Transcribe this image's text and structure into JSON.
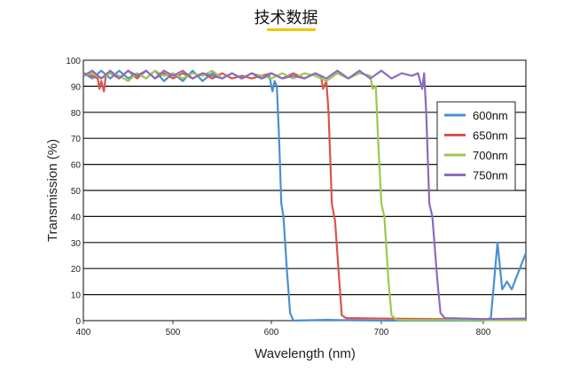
{
  "page_title": "技术数据",
  "colors": {
    "accent": "#f5c400"
  },
  "chart_data": {
    "type": "line",
    "title": "",
    "xlabel": "Wavelength (nm)",
    "ylabel": "Transmission (%)",
    "xlim": [
      400,
      845
    ],
    "ylim": [
      0,
      100
    ],
    "xticks": [
      400,
      500,
      600,
      700,
      800
    ],
    "yticks": [
      0,
      10,
      20,
      30,
      40,
      50,
      60,
      70,
      80,
      90,
      100
    ],
    "grid": true,
    "legend_position": "right",
    "series": [
      {
        "name": "600nm",
        "color": "#4a90d0",
        "x": [
          400,
          410,
          420,
          430,
          440,
          450,
          460,
          470,
          480,
          490,
          500,
          510,
          520,
          530,
          540,
          550,
          560,
          570,
          580,
          590,
          598,
          601,
          603,
          605,
          607,
          609,
          611,
          614,
          617,
          620,
          650,
          700,
          800,
          808,
          815,
          820,
          825,
          830,
          845
        ],
        "y": [
          95,
          93,
          96,
          93,
          96,
          93,
          95,
          93,
          96,
          92,
          95,
          92,
          96,
          92,
          95,
          93,
          95,
          93,
          95,
          93,
          94,
          88,
          92,
          90,
          70,
          45,
          40,
          20,
          3,
          0,
          0.3,
          0,
          0,
          1,
          30,
          12,
          15,
          12,
          26
        ]
      },
      {
        "name": "650nm",
        "color": "#d9534f",
        "x": [
          400,
          410,
          416,
          418,
          420,
          423,
          425,
          430,
          440,
          450,
          460,
          470,
          480,
          490,
          500,
          510,
          520,
          530,
          540,
          550,
          560,
          570,
          580,
          590,
          600,
          610,
          620,
          630,
          640,
          645,
          647,
          650,
          652,
          655,
          658,
          661,
          664,
          668,
          700,
          750,
          800,
          845
        ],
        "y": [
          95,
          94,
          93,
          89,
          92,
          88,
          94,
          95,
          93,
          96,
          93,
          96,
          93,
          95,
          93,
          95,
          93,
          95,
          93,
          95,
          93,
          94,
          93,
          94,
          95,
          93,
          95,
          93,
          95,
          94,
          89,
          92,
          80,
          45,
          38,
          20,
          2,
          1,
          0.8,
          0.6,
          0.5,
          0.5
        ]
      },
      {
        "name": "700nm",
        "color": "#9dc850",
        "x": [
          400,
          410,
          420,
          430,
          440,
          450,
          460,
          470,
          480,
          490,
          500,
          510,
          520,
          530,
          540,
          550,
          560,
          570,
          580,
          590,
          600,
          610,
          620,
          630,
          640,
          650,
          660,
          670,
          680,
          690,
          692,
          695,
          697,
          700,
          703,
          707,
          710,
          715,
          750,
          800,
          845
        ],
        "y": [
          94,
          95,
          93,
          95,
          94,
          92,
          95,
          93,
          96,
          94,
          95,
          93,
          95,
          94,
          96,
          93,
          95,
          93,
          95,
          94,
          93,
          95,
          93,
          95,
          94,
          92,
          95,
          93,
          95,
          94,
          89,
          90,
          70,
          45,
          40,
          15,
          2,
          0.3,
          0.2,
          0.2,
          0.2
        ]
      },
      {
        "name": "750nm",
        "color": "#8a6cbd",
        "x": [
          400,
          410,
          420,
          430,
          440,
          450,
          460,
          470,
          480,
          490,
          500,
          510,
          520,
          530,
          540,
          550,
          560,
          570,
          580,
          590,
          600,
          610,
          620,
          630,
          640,
          650,
          660,
          670,
          680,
          690,
          700,
          710,
          720,
          730,
          736,
          740,
          742,
          744,
          747,
          750,
          755,
          758,
          762,
          800,
          845
        ],
        "y": [
          94,
          96,
          93,
          96,
          93,
          96,
          94,
          96,
          93,
          96,
          94,
          96,
          93,
          95,
          94,
          93,
          95,
          93,
          95,
          93,
          95,
          93,
          94,
          93,
          95,
          93,
          96,
          93,
          96,
          93,
          96,
          93,
          95,
          94,
          95,
          89,
          95,
          80,
          45,
          40,
          15,
          3,
          1,
          0.6,
          0.8
        ]
      }
    ]
  }
}
